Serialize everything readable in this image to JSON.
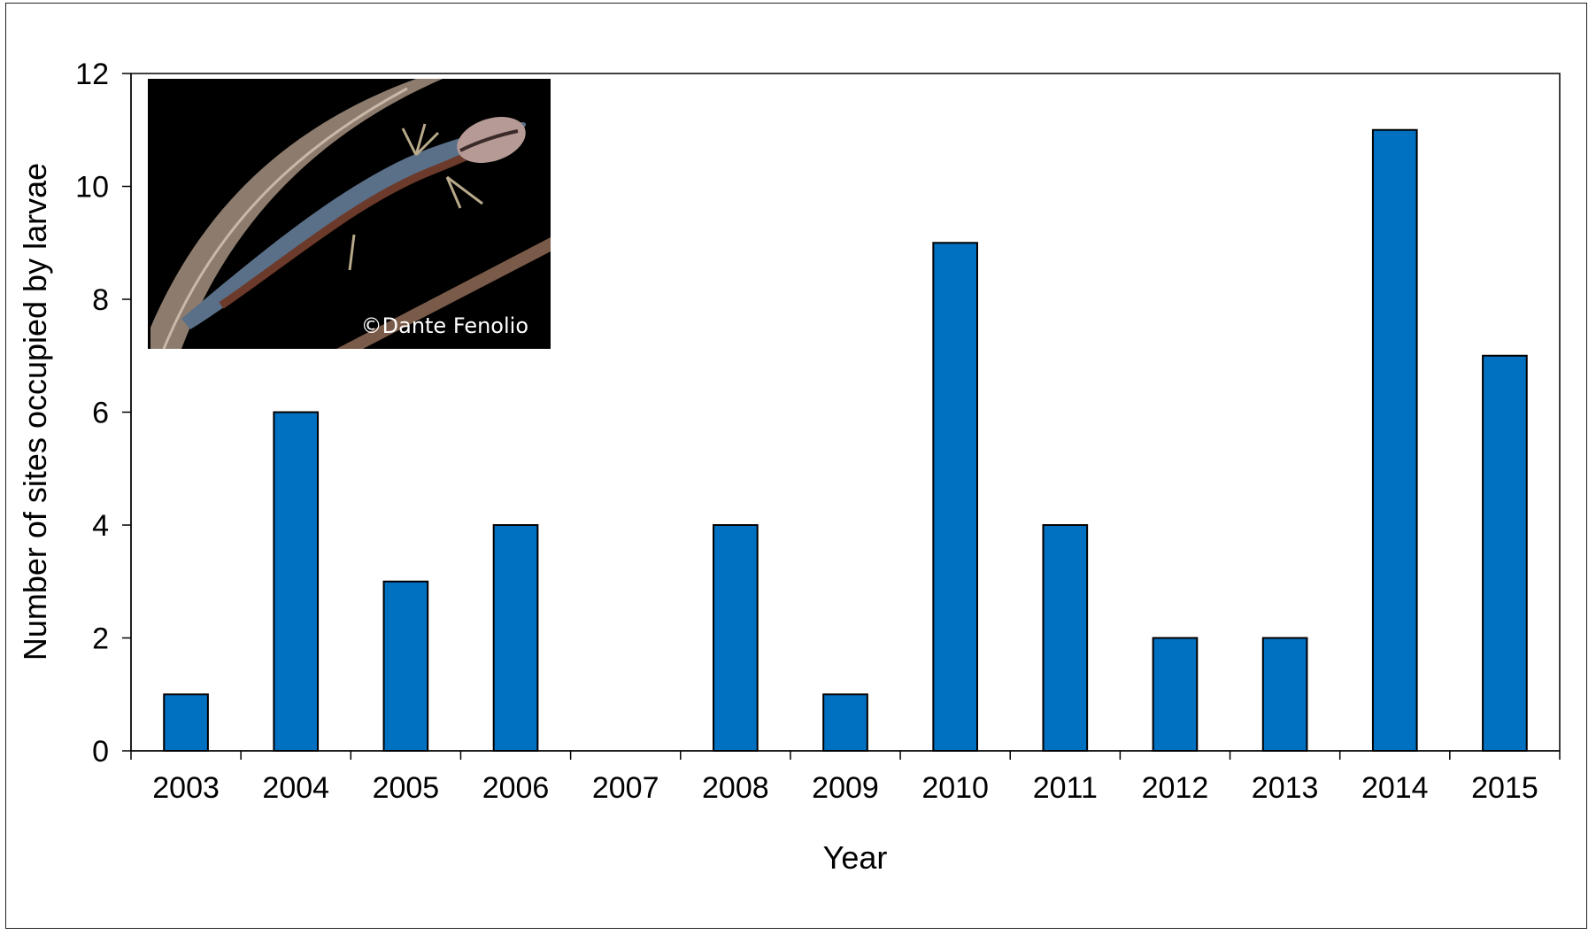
{
  "chart_data": {
    "type": "bar",
    "title": "",
    "xlabel": "Year",
    "ylabel": "Number of sites occupied by larvae",
    "categories": [
      "2003",
      "2004",
      "2005",
      "2006",
      "2007",
      "2008",
      "2009",
      "2010",
      "2011",
      "2012",
      "2013",
      "2014",
      "2015"
    ],
    "values": [
      1,
      6,
      3,
      4,
      0,
      4,
      1,
      9,
      4,
      2,
      2,
      11,
      7
    ],
    "ylim": [
      0,
      12
    ],
    "yticks": [
      0,
      2,
      4,
      6,
      8,
      10,
      12
    ],
    "grid": false,
    "legend": "none",
    "bar_color": "#0070C0",
    "bar_edge_color": "#000000"
  },
  "inset_photo": {
    "icon": "salamander-larva-photo",
    "credit": "©Dante Fenolio",
    "background": "#000000"
  }
}
